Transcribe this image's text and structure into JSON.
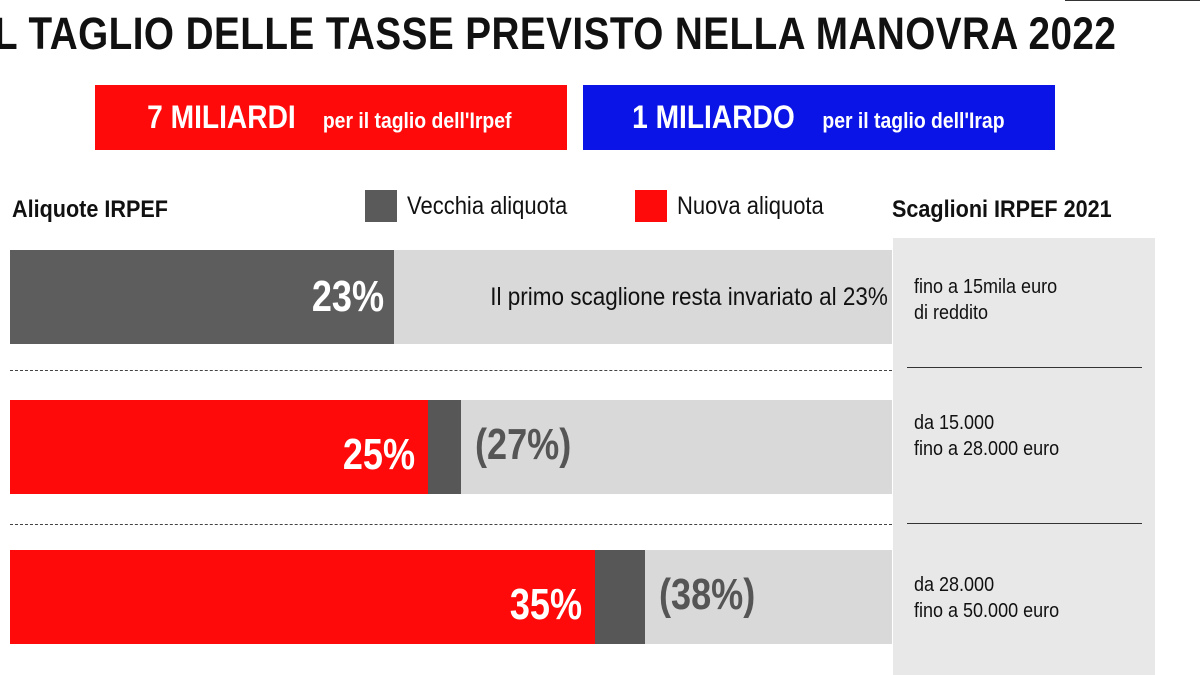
{
  "title": "L TAGLIO DELLE TASSE PREVISTO NELLA MANOVRA 2022",
  "boxes": {
    "irpef": {
      "amount": "7 MILIARDI",
      "text": "per il taglio dell'Irpef",
      "color": "#ff0a0a"
    },
    "irap": {
      "amount": "1 MILIARDO",
      "text": "per il taglio dell'Irap",
      "color": "#0a14e6"
    }
  },
  "labels": {
    "aliquote": "Aliquote IRPEF",
    "scaglioni": "Scaglioni IRPEF 2021"
  },
  "legend": {
    "old": {
      "label": "Vecchia aliquota",
      "color": "#5a5a5a"
    },
    "new": {
      "label": "Nuova aliquota",
      "color": "#ff0a0a"
    }
  },
  "chart_data": {
    "type": "bar",
    "orientation": "horizontal",
    "categories": [
      "fino a 15mila euro di reddito",
      "da 15.000 fino a 28.000 euro",
      "da 28.000 fino a 50.000 euro"
    ],
    "series": [
      {
        "name": "Vecchia aliquota",
        "values": [
          23,
          27,
          38
        ]
      },
      {
        "name": "Nuova aliquota",
        "values": [
          23,
          25,
          35
        ]
      }
    ],
    "unit": "%",
    "xlim": [
      0,
      52
    ]
  },
  "rows": [
    {
      "new_label": "23%",
      "old_label": "",
      "note": "Il primo scaglione resta invariato al 23%",
      "bracket_line1": "fino a 15mila euro",
      "bracket_line2": "di reddito"
    },
    {
      "new_label": "25%",
      "old_label": "(27%)",
      "note": "",
      "bracket_line1": "da 15.000",
      "bracket_line2": "fino a 28.000 euro"
    },
    {
      "new_label": "35%",
      "old_label": "(38%)",
      "note": "",
      "bracket_line1": "da 28.000",
      "bracket_line2": "fino a 50.000 euro"
    }
  ]
}
